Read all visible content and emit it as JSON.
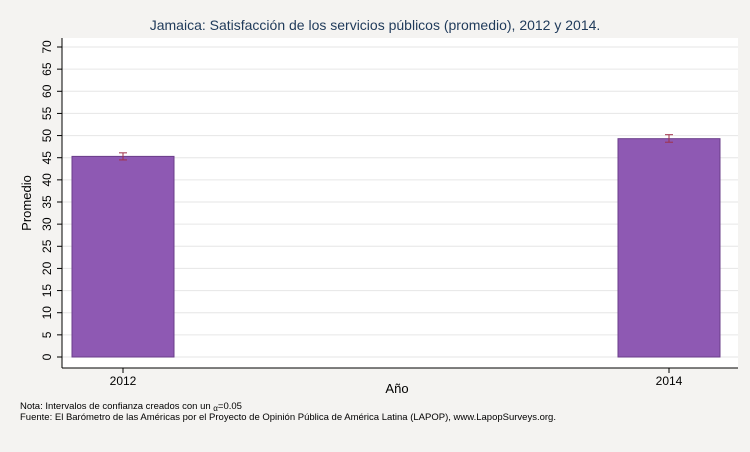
{
  "chart_data": {
    "type": "bar",
    "title": "Jamaica: Satisfacción de los servicios públicos (promedio), 2012 y 2014.",
    "xlabel": "Año",
    "ylabel": "Promedio",
    "categories": [
      "2012",
      "2014"
    ],
    "values": [
      45.3,
      49.3
    ],
    "ci_low": [
      44.5,
      48.5
    ],
    "ci_high": [
      46.1,
      50.2
    ],
    "ylim": [
      0,
      70
    ],
    "yticks": [
      "0",
      "5",
      "10",
      "15",
      "20",
      "25",
      "30",
      "35",
      "40",
      "45",
      "50",
      "55",
      "60",
      "65",
      "70"
    ],
    "grid": true,
    "legend": "none"
  },
  "colors": {
    "bar_fill": "#8e59b3",
    "bar_stroke": "#6a3d8a",
    "errorbar": "#a0304a",
    "background": "#f4f3f1",
    "plot_background": "#ffffff",
    "grid": "#e6e6e6",
    "title_text": "#1f3a5a"
  },
  "notes": {
    "ci_note_prefix": "Nota: Intervalos de confianza creados con un ",
    "ci_note_symbol": "α",
    "ci_note_value": "=0.05",
    "source": "Fuente: El Barómetro de las Américas por el Proyecto de Opinión Pública de América Latina (LAPOP), www.LapopSurveys.org."
  }
}
